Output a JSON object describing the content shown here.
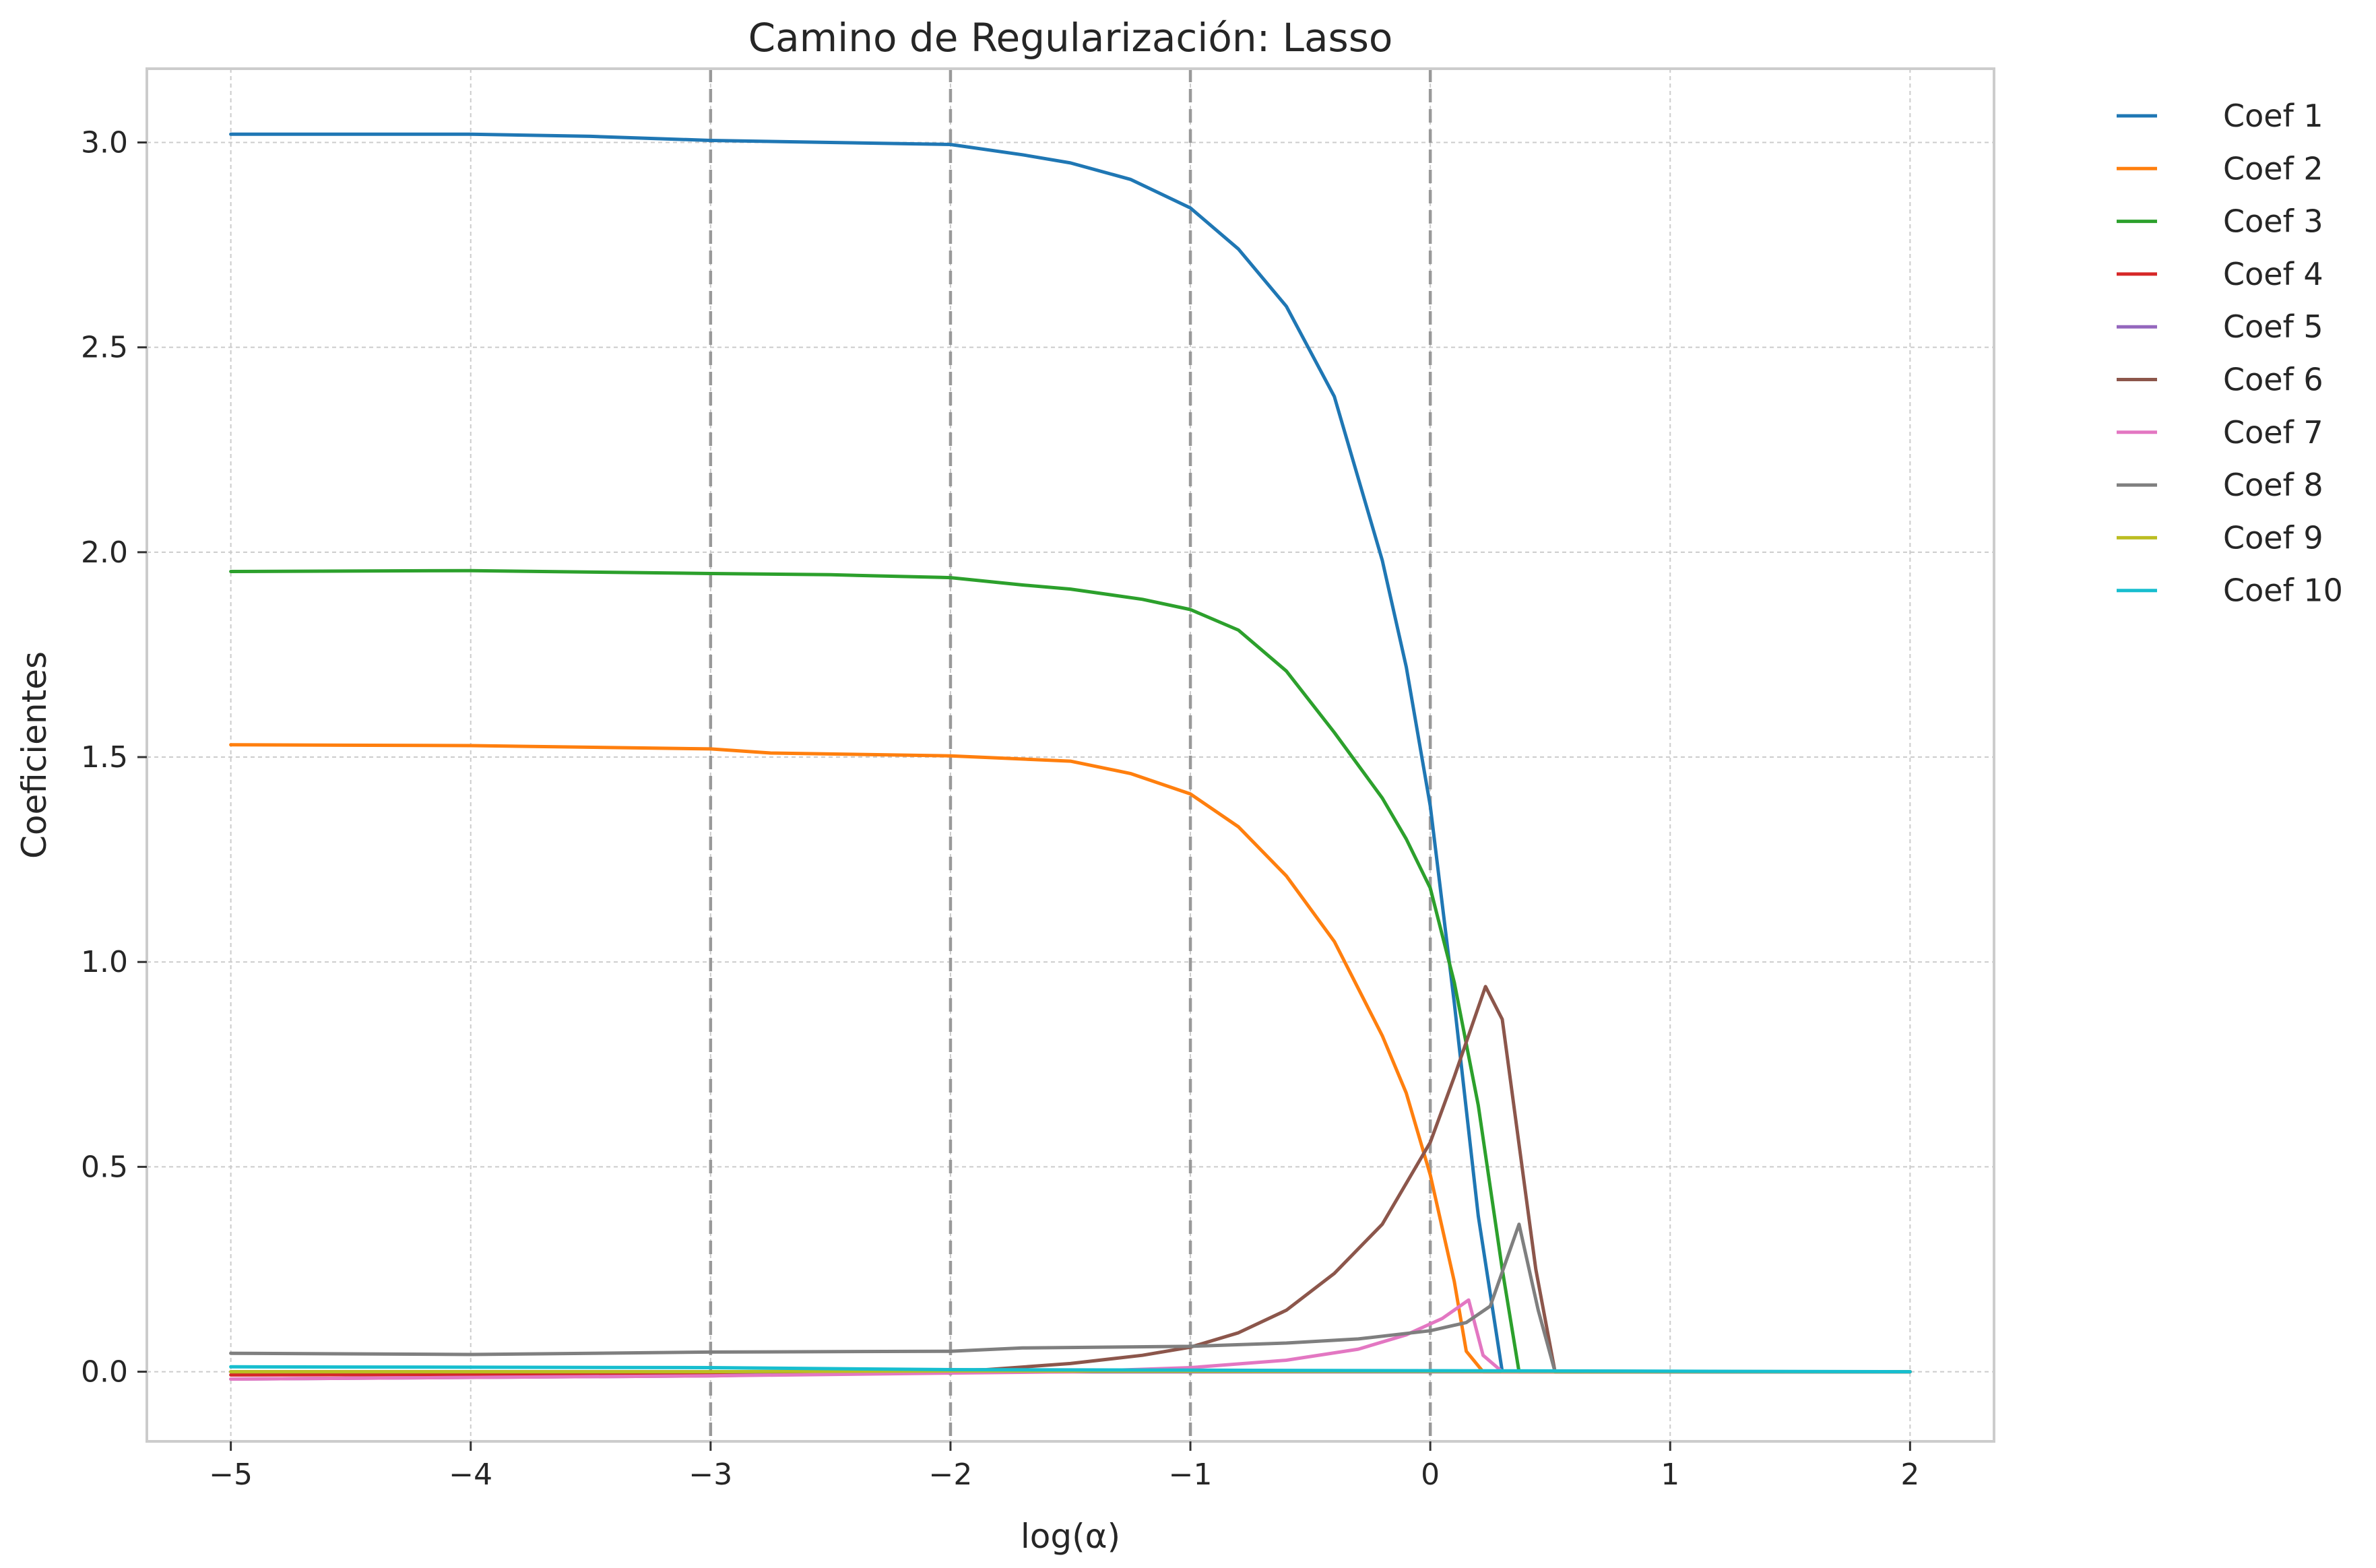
{
  "chart_data": {
    "type": "line",
    "title": "Camino de Regularización: Lasso",
    "xlabel": "log(α)",
    "ylabel": "Coeficientes",
    "xlim": [
      -5.35,
      2.35
    ],
    "ylim": [
      -0.17,
      3.18
    ],
    "xticks": [
      -5,
      -4,
      -3,
      -2,
      -1,
      0,
      1,
      2
    ],
    "xtick_labels": [
      "−5",
      "−4",
      "−3",
      "−2",
      "−1",
      "0",
      "1",
      "2"
    ],
    "yticks": [
      0.0,
      0.5,
      1.0,
      1.5,
      2.0,
      2.5,
      3.0
    ],
    "ytick_labels": [
      "0.0",
      "0.5",
      "1.0",
      "1.5",
      "2.0",
      "2.5",
      "3.0"
    ],
    "grid": true,
    "legend_position": "outside-right",
    "vertical_reference_lines": [
      -3,
      -2,
      -1,
      0
    ],
    "series": [
      {
        "name": "Coef 1",
        "color": "#1f77b4",
        "x": [
          -5,
          -4,
          -3.5,
          -3,
          -2.5,
          -2,
          -1.7,
          -1.5,
          -1.25,
          -1,
          -0.8,
          -0.6,
          -0.4,
          -0.2,
          -0.1,
          0,
          0.1,
          0.2,
          0.3,
          0.5,
          2
        ],
        "y": [
          3.02,
          3.02,
          3.015,
          3.005,
          3.0,
          2.995,
          2.97,
          2.95,
          2.91,
          2.84,
          2.74,
          2.6,
          2.38,
          1.98,
          1.72,
          1.38,
          0.9,
          0.38,
          0.0,
          0.0,
          0.0
        ]
      },
      {
        "name": "Coef 2",
        "color": "#ff7f0e",
        "x": [
          -5,
          -4,
          -3,
          -2.75,
          -2,
          -1.5,
          -1.25,
          -1,
          -0.8,
          -0.6,
          -0.4,
          -0.2,
          -0.1,
          0,
          0.1,
          0.15,
          0.22,
          2
        ],
        "y": [
          1.53,
          1.528,
          1.52,
          1.51,
          1.503,
          1.49,
          1.46,
          1.41,
          1.33,
          1.21,
          1.05,
          0.82,
          0.68,
          0.48,
          0.22,
          0.05,
          0.0,
          0.0
        ]
      },
      {
        "name": "Coef 3",
        "color": "#2ca02c",
        "x": [
          -5,
          -4,
          -3,
          -2.5,
          -2,
          -1.7,
          -1.5,
          -1.2,
          -1,
          -0.8,
          -0.6,
          -0.4,
          -0.2,
          -0.1,
          0,
          0.1,
          0.2,
          0.3,
          0.37,
          2
        ],
        "y": [
          1.953,
          1.955,
          1.948,
          1.945,
          1.938,
          1.92,
          1.91,
          1.885,
          1.86,
          1.81,
          1.71,
          1.56,
          1.4,
          1.3,
          1.18,
          0.95,
          0.65,
          0.25,
          0.0,
          0.0
        ]
      },
      {
        "name": "Coef 4",
        "color": "#d62728",
        "x": [
          -5,
          -3,
          -2,
          2
        ],
        "y": [
          -0.008,
          -0.005,
          0.0,
          0.0
        ]
      },
      {
        "name": "Coef 5",
        "color": "#9467bd",
        "x": [
          -5,
          -3,
          -2,
          2
        ],
        "y": [
          -0.018,
          -0.01,
          0.0,
          0.0
        ]
      },
      {
        "name": "Coef 6",
        "color": "#8c564b",
        "x": [
          -5,
          -3,
          -2.2,
          -1.85,
          -1.5,
          -1.2,
          -1,
          -0.8,
          -0.6,
          -0.4,
          -0.2,
          0,
          0.1,
          0.23,
          0.3,
          0.44,
          0.52,
          2
        ],
        "y": [
          0.0,
          0.0,
          0.0,
          0.005,
          0.02,
          0.04,
          0.06,
          0.095,
          0.15,
          0.24,
          0.36,
          0.56,
          0.72,
          0.94,
          0.86,
          0.25,
          0.0,
          0.0
        ]
      },
      {
        "name": "Coef 7",
        "color": "#e377c2",
        "x": [
          -5,
          -3,
          -1.5,
          -1,
          -0.6,
          -0.3,
          -0.1,
          0.05,
          0.16,
          0.22,
          0.3,
          2
        ],
        "y": [
          -0.018,
          -0.01,
          0.0,
          0.01,
          0.028,
          0.055,
          0.09,
          0.13,
          0.175,
          0.04,
          0.0,
          0.0
        ]
      },
      {
        "name": "Coef 8",
        "color": "#7f7f7f",
        "x": [
          -5,
          -4,
          -3,
          -2,
          -1.7,
          -1,
          -0.6,
          -0.3,
          0,
          0.15,
          0.25,
          0.37,
          0.45,
          0.52,
          2
        ],
        "y": [
          0.045,
          0.042,
          0.048,
          0.05,
          0.058,
          0.062,
          0.07,
          0.08,
          0.1,
          0.12,
          0.16,
          0.36,
          0.15,
          0.0,
          0.0
        ]
      },
      {
        "name": "Coef 9",
        "color": "#bcbd22",
        "x": [
          -5,
          -3,
          -2,
          2
        ],
        "y": [
          0.0,
          0.0,
          0.002,
          0.0
        ]
      },
      {
        "name": "Coef 10",
        "color": "#17becf",
        "x": [
          -5,
          -3,
          -2,
          2
        ],
        "y": [
          0.012,
          0.01,
          0.005,
          0.0
        ]
      }
    ]
  }
}
